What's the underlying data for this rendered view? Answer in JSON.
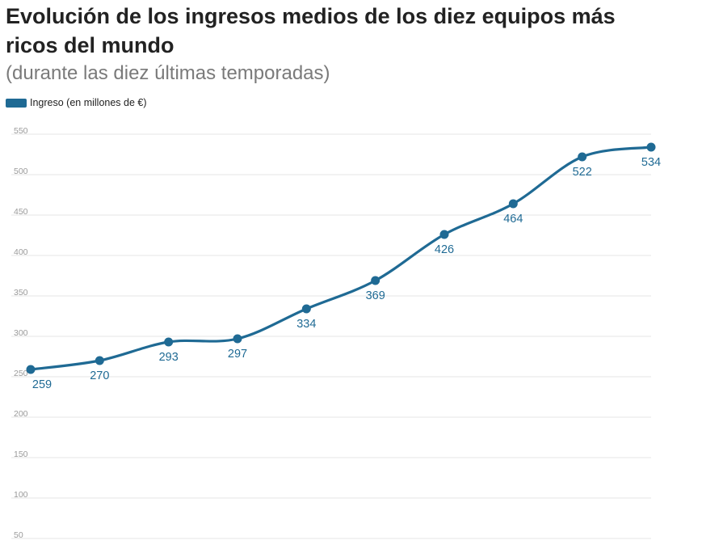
{
  "title": "Evolución de los ingresos medios de los diez equipos más ricos del mundo",
  "subtitle": "(durante las diez últimas temporadas)",
  "colors": {
    "series": "#1f6a94",
    "grid": "#e6e6e6",
    "tick_text": "#9a9a9a"
  },
  "chart_data": {
    "type": "line",
    "title": "Evolución de los ingresos medios de los diez equipos más ricos del mundo",
    "subtitle": "(durante las diez últimas temporadas)",
    "xlabel": "",
    "ylabel": "",
    "x": [
      1,
      2,
      3,
      4,
      5,
      6,
      7,
      8,
      9,
      10
    ],
    "series": [
      {
        "name": "Ingreso (en millones de €)",
        "values": [
          259,
          270,
          293,
          297,
          334,
          369,
          426,
          464,
          522,
          534
        ],
        "data_labels": [
          "259",
          "270",
          "293",
          "297",
          "334",
          "369",
          "426",
          "464",
          "522",
          "534"
        ]
      }
    ],
    "y_ticks": [
      50,
      100,
      150,
      200,
      250,
      300,
      350,
      400,
      450,
      500,
      550
    ],
    "ylim": [
      50,
      550
    ],
    "grid": true,
    "x_tick_labels": false,
    "legend_position": "top-left"
  }
}
